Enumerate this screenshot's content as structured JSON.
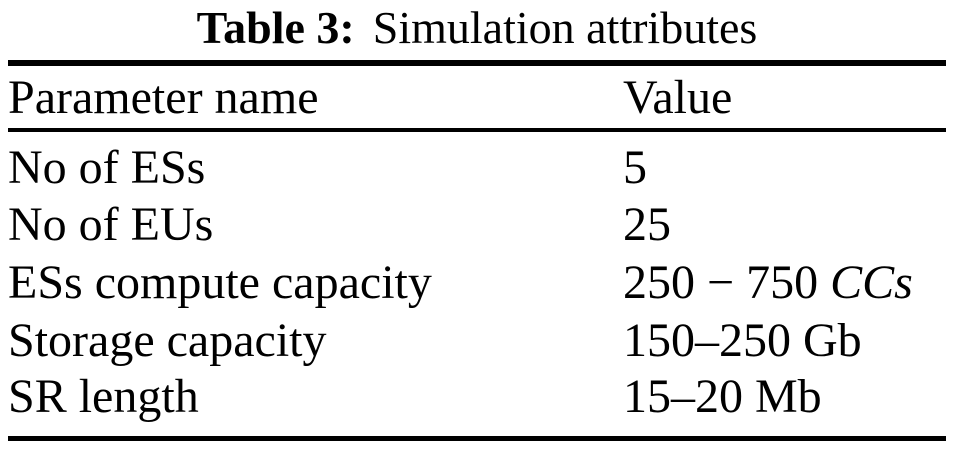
{
  "caption": {
    "label": "Table 3:",
    "title": "Simulation attributes"
  },
  "table": {
    "columns": {
      "parameter": "Parameter name",
      "value": "Value"
    },
    "rows": [
      {
        "parameter": "No of ESs",
        "value": "5",
        "value_italic": ""
      },
      {
        "parameter": "No of EUs",
        "value": "25",
        "value_italic": ""
      },
      {
        "parameter": "ESs compute capacity",
        "value": "250 − 750 ",
        "value_italic": "CCs"
      },
      {
        "parameter": "Storage capacity",
        "value": "150–250 Gb",
        "value_italic": ""
      },
      {
        "parameter": "SR length",
        "value": "15–20 Mb",
        "value_italic": ""
      }
    ]
  },
  "colors": {
    "background": "#ffffff",
    "text": "#000000",
    "rule": "#000000"
  }
}
